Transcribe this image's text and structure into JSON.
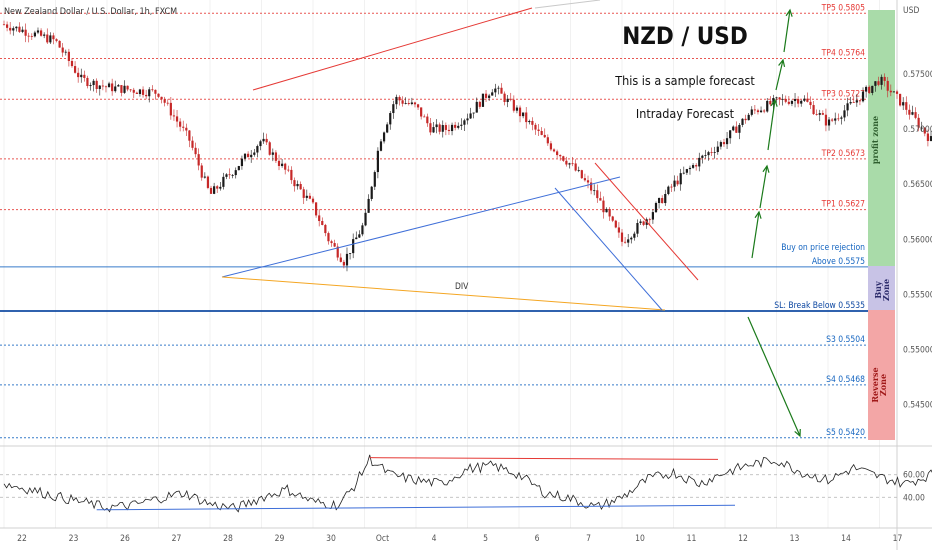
{
  "header": {
    "symbol_title": "New Zealand Dollar / U.S. Dollar, 1h, FXCM"
  },
  "annotations": {
    "pair": "NZD / USD",
    "line1": "This is a sample forecast",
    "line2": "Intraday Forecast",
    "div_label": "DIV"
  },
  "zones": {
    "profit": "profit zone",
    "buy_line1": "Buy",
    "buy_line2": "Zone",
    "reverse_line1": "Reverse",
    "reverse_line2": "Zone"
  },
  "colors": {
    "resistance": "#e53935",
    "support": "#1565c0",
    "blue_line": "#3f6fd8",
    "div_line": "#f4a623",
    "arrow": "#1b7a1b",
    "profit_zone": "#a9dba9",
    "buy_zone": "#c8c3e6",
    "reverse_zone": "#f3a6a6",
    "candle_up": "#1a1a1a",
    "candle_down": "#c62828"
  },
  "chart_data": [
    {
      "type": "candlestick",
      "title": "New Zealand Dollar / U.S. Dollar, 1h, FXCM",
      "currency_label": "USD",
      "y_ticks": [
        "0.57500",
        "0.57000",
        "0.56500",
        "0.56000",
        "0.55500",
        "0.55000",
        "0.54500"
      ],
      "ylim": [
        0.5418,
        0.5808
      ],
      "levels": [
        {
          "label": "TP5 0.5805",
          "value": 0.5805,
          "kind": "tp"
        },
        {
          "label": "TP4 0.5764",
          "value": 0.5764,
          "kind": "tp"
        },
        {
          "label": "TP3 0.5727",
          "value": 0.5727,
          "kind": "tp"
        },
        {
          "label": "TP2 0.5673",
          "value": 0.5673,
          "kind": "tp"
        },
        {
          "label": "TP1 0.5627",
          "value": 0.5627,
          "kind": "tp"
        },
        {
          "label": "Buy on price rejection",
          "value": 0.5585,
          "kind": "buy_note"
        },
        {
          "label": "Above 0.5575",
          "value": 0.5575,
          "kind": "buy"
        },
        {
          "label": "SL: Break Below 0.5535",
          "value": 0.5535,
          "kind": "sl"
        },
        {
          "label": "S3 0.5504",
          "value": 0.5504,
          "kind": "s"
        },
        {
          "label": "S4 0.5468",
          "value": 0.5468,
          "kind": "s"
        },
        {
          "label": "S5 0.5420",
          "value": 0.542,
          "kind": "s"
        }
      ],
      "close_path": [
        [
          22,
          0.5795
        ],
        [
          23,
          0.578
        ],
        [
          23.5,
          0.5745
        ],
        [
          24,
          0.5738
        ],
        [
          25,
          0.5733
        ],
        [
          25.6,
          0.569
        ],
        [
          26,
          0.564
        ],
        [
          26.5,
          0.5665
        ],
        [
          27,
          0.569
        ],
        [
          27.5,
          0.566
        ],
        [
          28,
          0.563
        ],
        [
          28.3,
          0.56
        ],
        [
          28.6,
          0.558
        ],
        [
          29,
          0.5615
        ],
        [
          29.3,
          0.569
        ],
        [
          29.6,
          0.5728
        ],
        [
          30,
          0.572
        ],
        [
          30.3,
          0.57
        ],
        [
          30.6,
          0.57
        ],
        [
          31,
          0.5712
        ],
        [
          31.5,
          0.5738
        ],
        [
          32,
          0.5715
        ],
        [
          32.5,
          0.569
        ],
        [
          33,
          0.5668
        ],
        [
          33.5,
          0.564
        ],
        [
          34,
          0.5598
        ],
        [
          34.5,
          0.562
        ],
        [
          35,
          0.565
        ],
        [
          35.5,
          0.5672
        ],
        [
          36,
          0.569
        ],
        [
          36.5,
          0.5715
        ],
        [
          37,
          0.5725
        ],
        [
          37.5,
          0.5728
        ],
        [
          38,
          0.5705
        ],
        [
          38.5,
          0.5724
        ],
        [
          39,
          0.5745
        ],
        [
          39.5,
          0.572
        ],
        [
          40,
          0.569
        ],
        [
          40.5,
          0.5712
        ],
        [
          41,
          0.5748
        ],
        [
          41.5,
          0.578
        ],
        [
          42,
          0.58
        ],
        [
          42.3,
          0.5765
        ],
        [
          42.6,
          0.572
        ],
        [
          43,
          0.569
        ],
        [
          43.5,
          0.5665
        ],
        [
          44,
          0.565
        ],
        [
          44.5,
          0.5658
        ],
        [
          45,
          0.564
        ],
        [
          45.5,
          0.5625
        ],
        [
          46,
          0.5612
        ],
        [
          46.5,
          0.5598
        ],
        [
          47,
          0.558
        ],
        [
          47.5,
          0.556
        ],
        [
          47.8,
          0.5545
        ],
        [
          48.1,
          0.5555
        ],
        [
          48.4,
          0.557
        ],
        [
          48.7,
          0.558
        ],
        [
          49,
          0.561
        ],
        [
          49.2,
          0.5625
        ]
      ],
      "rsi": {
        "ylim": [
          20,
          80
        ],
        "y_ticks": [
          "60.00",
          "40.00"
        ],
        "close_path": [
          [
            22,
            52
          ],
          [
            22.5,
            47
          ],
          [
            23,
            41
          ],
          [
            23.5,
            36
          ],
          [
            24,
            31
          ],
          [
            24.5,
            33
          ],
          [
            25,
            39
          ],
          [
            25.5,
            44
          ],
          [
            26,
            34
          ],
          [
            26.5,
            30
          ],
          [
            27,
            40
          ],
          [
            27.5,
            47
          ],
          [
            28,
            36
          ],
          [
            28.5,
            33
          ],
          [
            28.8,
            50
          ],
          [
            29.1,
            74
          ],
          [
            29.5,
            60
          ],
          [
            30,
            55
          ],
          [
            30.5,
            52
          ],
          [
            31,
            65
          ],
          [
            31.5,
            68
          ],
          [
            32,
            60
          ],
          [
            32.5,
            44
          ],
          [
            33,
            39
          ],
          [
            33.5,
            31
          ],
          [
            34,
            40
          ],
          [
            34.5,
            56
          ],
          [
            35,
            62
          ],
          [
            35.5,
            52
          ],
          [
            36,
            62
          ],
          [
            36.5,
            69
          ],
          [
            37,
            73
          ],
          [
            37.5,
            62
          ],
          [
            38,
            55
          ],
          [
            38.5,
            66
          ],
          [
            39,
            58
          ],
          [
            39.5,
            52
          ],
          [
            40,
            60
          ],
          [
            40.5,
            66
          ],
          [
            41,
            62
          ],
          [
            41.5,
            70
          ],
          [
            42,
            74
          ],
          [
            42.5,
            58
          ],
          [
            43,
            40
          ],
          [
            43.5,
            35
          ],
          [
            44,
            42
          ],
          [
            44.5,
            40
          ],
          [
            45,
            46
          ],
          [
            45.5,
            38
          ],
          [
            46,
            32
          ],
          [
            46.5,
            38
          ],
          [
            47,
            40
          ],
          [
            47.5,
            34
          ],
          [
            48,
            43
          ],
          [
            48.3,
            39
          ],
          [
            48.7,
            52
          ],
          [
            49,
            60
          ],
          [
            49.2,
            67
          ]
        ]
      },
      "x_ticks": [
        {
          "label": "22",
          "t": 22
        },
        {
          "label": "23",
          "t": 23
        },
        {
          "label": "26",
          "t": 24
        },
        {
          "label": "27",
          "t": 25
        },
        {
          "label": "28",
          "t": 26
        },
        {
          "label": "29",
          "t": 27
        },
        {
          "label": "30",
          "t": 28
        },
        {
          "label": "Oct",
          "t": 29
        },
        {
          "label": "4",
          "t": 30
        },
        {
          "label": "5",
          "t": 31
        },
        {
          "label": "6",
          "t": 32
        },
        {
          "label": "7",
          "t": 33
        },
        {
          "label": "10",
          "t": 34
        },
        {
          "label": "11",
          "t": 35
        },
        {
          "label": "12",
          "t": 36
        },
        {
          "label": "13",
          "t": 37
        },
        {
          "label": "14",
          "t": 38
        },
        {
          "label": "17",
          "t": 39
        }
      ]
    }
  ]
}
